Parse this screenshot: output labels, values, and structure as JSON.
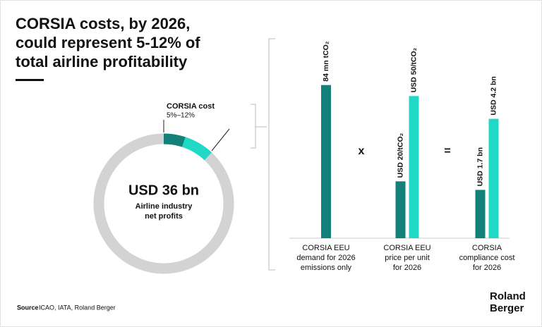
{
  "title": [
    "CORSIA costs, by 2026,",
    "could represent 5-12% of",
    "total airline profitability"
  ],
  "source_label": "Source",
  "source": "ICAO, IATA, Roland Berger",
  "brand": [
    "Roland",
    "Berger"
  ],
  "chart_data": [
    {
      "type": "donut",
      "values": [
        5,
        7,
        88
      ],
      "colors": [
        "#13807a",
        "#1fd8c6",
        "#d3d3d3"
      ],
      "center_value": "USD 36 bn",
      "center_label": [
        "Airline industry",
        "net profits"
      ],
      "annotation_title": "CORSIA cost",
      "annotation": "5%–12%"
    },
    {
      "type": "bar",
      "operators": [
        "x",
        "="
      ],
      "groups": [
        {
          "label": [
            "CORSIA EEU",
            "demand for 2026",
            "emissions only"
          ],
          "ylim": [
            0,
            92
          ],
          "bars": [
            {
              "value": 84,
              "value_label": "84 mn tCO₂",
              "color": "#13807a"
            }
          ]
        },
        {
          "label": [
            "CORSIA EEU",
            "price per unit",
            "for 2026"
          ],
          "ylim": [
            0,
            59
          ],
          "bars": [
            {
              "value": 20,
              "value_label": "USD 20/tCO₂",
              "color": "#13807a"
            },
            {
              "value": 50,
              "value_label": "USD 50/tCO₂",
              "color": "#1fd8c6"
            }
          ]
        },
        {
          "label": [
            "CORSIA",
            "compliance cost",
            "for 2026"
          ],
          "ylim": [
            0,
            5.9
          ],
          "bars": [
            {
              "value": 1.7,
              "value_label": "USD 1.7 bn",
              "color": "#13807a"
            },
            {
              "value": 4.2,
              "value_label": "USD 4.2 bn",
              "color": "#1fd8c6"
            }
          ]
        }
      ]
    }
  ]
}
